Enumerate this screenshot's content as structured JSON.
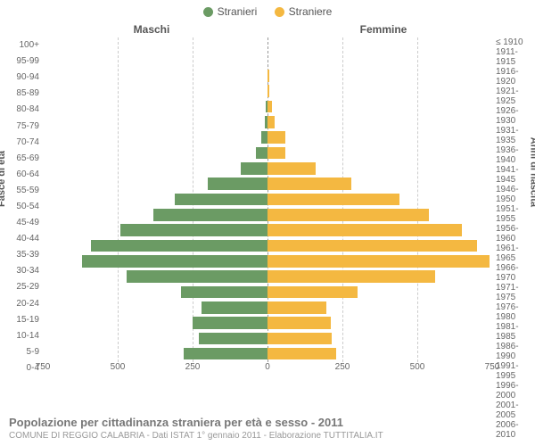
{
  "legend": {
    "maleLabel": "Stranieri",
    "femaleLabel": "Straniere"
  },
  "headers": {
    "left": "Maschi",
    "right": "Femmine"
  },
  "axisTitles": {
    "left": "Fasce di età",
    "right": "Anni di nascita"
  },
  "chart": {
    "type": "population-pyramid",
    "maxValue": 750,
    "maleColor": "#6b9b64",
    "femaleColor": "#f4b841",
    "gridColor": "#cccccc",
    "centerLineColor": "#999999",
    "backgroundColor": "#ffffff",
    "label_fontsize": 10,
    "tickValues": [
      750,
      500,
      250,
      0,
      250,
      500,
      750
    ],
    "rows": [
      {
        "ageLabel": "100+",
        "yearLabel": "≤ 1910",
        "male": 0,
        "female": 0
      },
      {
        "ageLabel": "95-99",
        "yearLabel": "1911-1915",
        "male": 0,
        "female": 0
      },
      {
        "ageLabel": "90-94",
        "yearLabel": "1916-1920",
        "male": 0,
        "female": 5
      },
      {
        "ageLabel": "85-89",
        "yearLabel": "1921-1925",
        "male": 0,
        "female": 5
      },
      {
        "ageLabel": "80-84",
        "yearLabel": "1926-1930",
        "male": 5,
        "female": 15
      },
      {
        "ageLabel": "75-79",
        "yearLabel": "1931-1935",
        "male": 10,
        "female": 25
      },
      {
        "ageLabel": "70-74",
        "yearLabel": "1936-1940",
        "male": 20,
        "female": 60
      },
      {
        "ageLabel": "65-69",
        "yearLabel": "1941-1945",
        "male": 40,
        "female": 60
      },
      {
        "ageLabel": "60-64",
        "yearLabel": "1946-1950",
        "male": 90,
        "female": 160
      },
      {
        "ageLabel": "55-59",
        "yearLabel": "1951-1955",
        "male": 200,
        "female": 280
      },
      {
        "ageLabel": "50-54",
        "yearLabel": "1956-1960",
        "male": 310,
        "female": 440
      },
      {
        "ageLabel": "45-49",
        "yearLabel": "1961-1965",
        "male": 380,
        "female": 540
      },
      {
        "ageLabel": "40-44",
        "yearLabel": "1966-1970",
        "male": 490,
        "female": 650
      },
      {
        "ageLabel": "35-39",
        "yearLabel": "1971-1975",
        "male": 590,
        "female": 700
      },
      {
        "ageLabel": "30-34",
        "yearLabel": "1976-1980",
        "male": 620,
        "female": 740
      },
      {
        "ageLabel": "25-29",
        "yearLabel": "1981-1985",
        "male": 470,
        "female": 560
      },
      {
        "ageLabel": "20-24",
        "yearLabel": "1986-1990",
        "male": 290,
        "female": 300
      },
      {
        "ageLabel": "15-19",
        "yearLabel": "1991-1995",
        "male": 220,
        "female": 195
      },
      {
        "ageLabel": "10-14",
        "yearLabel": "1996-2000",
        "male": 250,
        "female": 210
      },
      {
        "ageLabel": "5-9",
        "yearLabel": "2001-2005",
        "male": 230,
        "female": 215
      },
      {
        "ageLabel": "0-4",
        "yearLabel": "2006-2010",
        "male": 280,
        "female": 230
      }
    ]
  },
  "footer": {
    "title": "Popolazione per cittadinanza straniera per età e sesso - 2011",
    "subtitle": "COMUNE DI REGGIO CALABRIA - Dati ISTAT 1° gennaio 2011 - Elaborazione TUTTITALIA.IT"
  }
}
